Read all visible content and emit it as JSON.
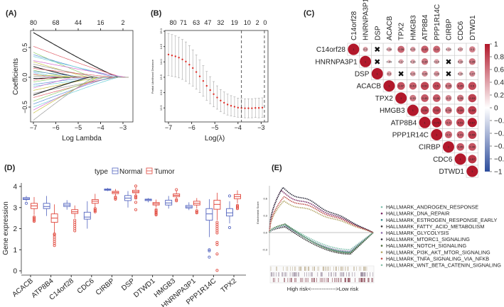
{
  "chart_data": [
    {
      "panel": "(A)",
      "type": "line",
      "xlabel": "Log Lambda",
      "ylabel": "Coefficients",
      "xlim": [
        -7.1,
        -2.6
      ],
      "ylim": [
        -0.8,
        0.8
      ],
      "xticks": [
        -7,
        -6,
        -5,
        -4,
        -3
      ],
      "yticks": [
        0.5,
        0.0,
        -0.5
      ],
      "top_ticks": [
        {
          "lambda": -7,
          "label": "80"
        },
        {
          "lambda": -6,
          "label": "68"
        },
        {
          "lambda": -5,
          "label": "44"
        },
        {
          "lambda": -4,
          "label": "16"
        },
        {
          "lambda": -3,
          "label": "2"
        }
      ],
      "palette": [
        "#222222",
        "#e0606a",
        "#8ccf6a",
        "#5b8fd6",
        "#6fd0d8",
        "#d66ad0",
        "#c8c040",
        "#9a9a9a"
      ],
      "paths": [
        {
          "start": 0.75,
          "zero_at": -3.2
        },
        {
          "start": 0.52,
          "zero_at": -3.0
        },
        {
          "start": 0.42,
          "zero_at": -4.3
        },
        {
          "start": 0.38,
          "zero_at": -3.3
        },
        {
          "start": 0.35,
          "zero_at": -3.0
        },
        {
          "start": 0.28,
          "zero_at": -2.8
        },
        {
          "start": 0.26,
          "zero_at": -4.5
        },
        {
          "start": 0.22,
          "zero_at": -4.1
        },
        {
          "start": 0.18,
          "zero_at": -5.0
        },
        {
          "start": 0.15,
          "zero_at": -3.3
        },
        {
          "start": 0.12,
          "zero_at": -5.4
        },
        {
          "start": 0.1,
          "zero_at": -4.6
        },
        {
          "start": 0.08,
          "zero_at": -5.8
        },
        {
          "start": 0.06,
          "zero_at": -6.2
        },
        {
          "start": 0.04,
          "zero_at": -4.2
        },
        {
          "start": 0.02,
          "zero_at": -5.0
        },
        {
          "start": -0.02,
          "zero_at": -4.8
        },
        {
          "start": -0.05,
          "zero_at": -6.0
        },
        {
          "start": -0.08,
          "zero_at": -5.6
        },
        {
          "start": -0.12,
          "zero_at": -4.4
        },
        {
          "start": -0.15,
          "zero_at": -3.6
        },
        {
          "start": -0.18,
          "zero_at": -5.2
        },
        {
          "start": -0.22,
          "zero_at": -4.0
        },
        {
          "start": -0.27,
          "zero_at": -3.2
        },
        {
          "start": -0.3,
          "zero_at": -4.5
        },
        {
          "start": -0.34,
          "zero_at": -3.4
        },
        {
          "start": -0.4,
          "zero_at": -3.8
        },
        {
          "start": -0.45,
          "zero_at": -3.5
        },
        {
          "start": -0.5,
          "zero_at": -3.2
        },
        {
          "start": -0.55,
          "zero_at": -3.9
        },
        {
          "start": -0.6,
          "zero_at": -4.1
        },
        {
          "start": -0.72,
          "zero_at": -4.3
        }
      ]
    },
    {
      "panel": "(B)",
      "type": "scatter",
      "xlabel": "Log(λ)",
      "ylabel": "Partial Likelihood Deviance",
      "xlim": [
        -7.15,
        -2.7
      ],
      "ylim": [
        12.2,
        15.05
      ],
      "xticks": [
        -7,
        -6,
        -5,
        -4,
        -3
      ],
      "yticks": [
        15.0,
        14.5,
        14.0,
        13.5,
        13.0,
        12.5
      ],
      "top_ticks": [
        {
          "lambda": -6.8,
          "label": "80"
        },
        {
          "lambda": -6.35,
          "label": "71"
        },
        {
          "lambda": -5.8,
          "label": "63"
        },
        {
          "lambda": -5.3,
          "label": "47"
        },
        {
          "lambda": -4.75,
          "label": "32"
        },
        {
          "lambda": -4.15,
          "label": "19"
        },
        {
          "lambda": -3.6,
          "label": "10"
        },
        {
          "lambda": -3.16,
          "label": "2"
        },
        {
          "lambda": -2.83,
          "label": "0"
        }
      ],
      "vlines": [
        -3.85,
        -2.86
      ],
      "points": [
        [
          -7.0,
          14.24,
          0.69
        ],
        [
          -6.85,
          14.21,
          0.68
        ],
        [
          -6.7,
          14.18,
          0.67
        ],
        [
          -6.55,
          14.14,
          0.66
        ],
        [
          -6.4,
          14.08,
          0.65
        ],
        [
          -6.25,
          14.01,
          0.64
        ],
        [
          -6.1,
          13.91,
          0.62
        ],
        [
          -5.95,
          13.8,
          0.59
        ],
        [
          -5.8,
          13.67,
          0.56
        ],
        [
          -5.65,
          13.53,
          0.53
        ],
        [
          -5.5,
          13.38,
          0.5
        ],
        [
          -5.35,
          13.22,
          0.47
        ],
        [
          -5.2,
          13.08,
          0.44
        ],
        [
          -5.05,
          12.95,
          0.41
        ],
        [
          -4.9,
          12.84,
          0.38
        ],
        [
          -4.75,
          12.74,
          0.36
        ],
        [
          -4.6,
          12.67,
          0.35
        ],
        [
          -4.45,
          12.61,
          0.34
        ],
        [
          -4.3,
          12.57,
          0.33
        ],
        [
          -4.15,
          12.54,
          0.32
        ],
        [
          -4.0,
          12.51,
          0.31
        ],
        [
          -3.85,
          12.5,
          0.31
        ],
        [
          -3.7,
          12.49,
          0.31
        ],
        [
          -3.55,
          12.49,
          0.31
        ],
        [
          -3.4,
          12.49,
          0.31
        ],
        [
          -3.25,
          12.5,
          0.31
        ],
        [
          -3.1,
          12.5,
          0.32
        ],
        [
          -2.95,
          12.51,
          0.32
        ]
      ],
      "point_color": "#e0302a",
      "errorbar_color": "#a8a8a8"
    },
    {
      "panel": "(C)",
      "type": "heatmap",
      "genes": [
        "C14orf28",
        "HNRNPA3P1",
        "DSP",
        "ACACB",
        "TPX2",
        "HMGB3",
        "ATP8B4",
        "PPP1R14C",
        "CIRBP",
        "CDC6",
        "DTWD1"
      ],
      "upper_triangle": [
        [
          1,
          0.2,
          null,
          0.16,
          0.39,
          0.21,
          0.43,
          0.4,
          0.15,
          0.17,
          0.3
        ],
        [
          1,
          null,
          0.09,
          0.17,
          0.16,
          0.34,
          0.19,
          null,
          0.19,
          0.35
        ],
        [
          1,
          0.2,
          null,
          0.21,
          0.26,
          0.23,
          null,
          0.15,
          0.27
        ],
        [
          1,
          0.47,
          0.43,
          0.51,
          0.5,
          0.35,
          0.45,
          0.5
        ],
        [
          1,
          0.33,
          0.45,
          0.45,
          0.3,
          0.35,
          0.53
        ],
        [
          1,
          0.54,
          0.52,
          0.36,
          0.49,
          0.55
        ],
        [
          1,
          0.73,
          0.4,
          0.51,
          0.67
        ],
        [
          1,
          0.4,
          0.41,
          0.55
        ],
        [
          1,
          0.45,
          0.46
        ],
        [
          1,
          0.57
        ],
        [
          1
        ]
      ],
      "colorbar_ticks": [
        "1",
        "0.8",
        "0.6",
        "0.4",
        "0.2",
        "0",
        "−0.2",
        "−0.4",
        "−0.6",
        "−0.8",
        "−1"
      ],
      "colorbar_values": [
        1,
        0.8,
        0.6,
        0.4,
        0.2,
        0,
        -0.2,
        -0.4,
        -0.6,
        -0.8,
        -1
      ],
      "color_positive": "#b2182b",
      "color_negative": "#2c4c9c",
      "color_zero": "#f7f7f7",
      "nonsignificant_mark": "✖"
    },
    {
      "panel": "(D)",
      "type": "box",
      "ylabel": "Gene expression",
      "ylim": [
        -0.15,
        4.3
      ],
      "yticks": [
        0,
        1,
        2,
        3,
        4
      ],
      "legend": {
        "title": "type",
        "entries": [
          {
            "name": "Normal",
            "color": "#5566c0"
          },
          {
            "name": "Tumor",
            "color": "#e0453a"
          }
        ]
      },
      "categories": [
        "ACACB",
        "ATP8B4",
        "C14orf28",
        "CDC6",
        "CIRBP",
        "DSP",
        "DTWD1",
        "HMGB3",
        "HNRNPA3P1",
        "PPP1R14C",
        "TPX2"
      ],
      "normal": [
        {
          "med": 3.42,
          "q1": 3.38,
          "q3": 3.47,
          "lo": 3.3,
          "hi": 3.55,
          "out": [
            3.2
          ]
        },
        {
          "med": 3.05,
          "q1": 2.95,
          "q3": 3.2,
          "lo": 2.6,
          "hi": 3.55,
          "out": []
        },
        {
          "med": 3.12,
          "q1": 3.05,
          "q3": 3.2,
          "lo": 2.9,
          "hi": 3.35,
          "out": []
        },
        {
          "med": 2.55,
          "q1": 2.45,
          "q3": 2.78,
          "lo": 2.0,
          "hi": 3.3,
          "out": []
        },
        {
          "med": 3.85,
          "q1": 3.82,
          "q3": 3.88,
          "lo": 3.78,
          "hi": 3.93,
          "out": []
        },
        {
          "med": 3.45,
          "q1": 3.33,
          "q3": 3.57,
          "lo": 3.0,
          "hi": 3.78,
          "out": []
        },
        {
          "med": 3.37,
          "q1": 3.33,
          "q3": 3.4,
          "lo": 3.25,
          "hi": 3.45,
          "out": []
        },
        {
          "med": 3.22,
          "q1": 3.12,
          "q3": 3.35,
          "lo": 2.95,
          "hi": 3.55,
          "out": []
        },
        {
          "med": 3.03,
          "q1": 2.98,
          "q3": 3.1,
          "lo": 2.88,
          "hi": 3.25,
          "out": []
        },
        {
          "med": 2.7,
          "q1": 2.4,
          "q3": 2.95,
          "lo": 1.6,
          "hi": 3.4,
          "out": [
            1.0,
            0.95,
            0.65
          ]
        },
        {
          "med": 2.75,
          "q1": 2.6,
          "q3": 2.95,
          "lo": 2.25,
          "hi": 3.3,
          "out": [
            2.05,
            3.55
          ]
        }
      ],
      "tumor": [
        {
          "med": 3.08,
          "q1": 2.95,
          "q3": 3.2,
          "lo": 2.65,
          "hi": 3.5,
          "out": [
            2.55,
            2.5,
            2.45,
            2.4,
            2.35
          ]
        },
        {
          "med": 2.5,
          "q1": 2.3,
          "q3": 2.7,
          "lo": 1.8,
          "hi": 3.15,
          "out": [
            1.75,
            1.7,
            1.6,
            1.5,
            1.4,
            1.3,
            1.2
          ]
        },
        {
          "med": 2.8,
          "q1": 2.72,
          "q3": 2.9,
          "lo": 2.5,
          "hi": 3.1,
          "out": [
            2.4,
            2.3,
            2.2,
            2.1,
            2.0,
            1.9
          ]
        },
        {
          "med": 3.3,
          "q1": 3.2,
          "q3": 3.38,
          "lo": 3.0,
          "hi": 3.65,
          "out": [
            2.95,
            2.9,
            2.85,
            2.8
          ]
        },
        {
          "med": 3.72,
          "q1": 3.66,
          "q3": 3.77,
          "lo": 3.55,
          "hi": 3.88,
          "out": [
            3.5,
            3.45,
            3.4
          ]
        },
        {
          "med": 3.75,
          "q1": 3.7,
          "q3": 3.82,
          "lo": 3.6,
          "hi": 3.95,
          "out": [
            4.02,
            3.55,
            3.5,
            3.45,
            3.25,
            2.9
          ]
        },
        {
          "med": 3.18,
          "q1": 3.12,
          "q3": 3.24,
          "lo": 3.0,
          "hi": 3.38,
          "out": [
            2.9,
            2.85,
            2.8,
            2.75,
            2.7,
            2.65
          ]
        },
        {
          "med": 3.58,
          "q1": 3.52,
          "q3": 3.65,
          "lo": 3.42,
          "hi": 3.8,
          "out": [
            3.85,
            3.38,
            3.32
          ]
        },
        {
          "med": 3.2,
          "q1": 3.12,
          "q3": 3.3,
          "lo": 2.95,
          "hi": 3.45,
          "out": [
            2.85,
            2.8,
            2.75
          ]
        },
        {
          "med": 3.15,
          "q1": 2.92,
          "q3": 3.35,
          "lo": 2.4,
          "hi": 3.7,
          "out": [
            2.3,
            2.2,
            2.1,
            2.0,
            1.9,
            1.8,
            1.35,
            1.25,
            0.8,
            0.02
          ]
        },
        {
          "med": 3.52,
          "q1": 3.42,
          "q3": 3.62,
          "lo": 3.2,
          "hi": 3.82,
          "out": [
            3.1,
            3.05,
            3.0,
            2.95
          ]
        }
      ]
    },
    {
      "panel": "(E)",
      "type": "line",
      "ylabel": "Enrichment Score",
      "ylim": [
        -0.45,
        0.82
      ],
      "yticks": [
        0.6,
        0.3,
        0.0,
        -0.3
      ],
      "xlabel": "High risk<-------------->Low risk",
      "series": [
        {
          "name": "HALLMARK_ANDROGEN_RESPONSE",
          "color": "#7fc0ae",
          "peak": 0.15,
          "trough": -0.3
        },
        {
          "name": "HALLMARK_DNA_REPAIR",
          "color": "#7a2c66",
          "peak": 0.72,
          "trough": 0
        },
        {
          "name": "HALLMARK_ESTROGEN_RESPONSE_EARLY",
          "color": "#3c8c8c",
          "peak": 0.14,
          "trough": -0.35
        },
        {
          "name": "HALLMARK_FATTY_ACID_METABOLISM",
          "color": "#333333",
          "peak": 0.1,
          "trough": -0.38
        },
        {
          "name": "HALLMARK_GLYCOLYSIS",
          "color": "#8a6aa8",
          "peak": 0.12,
          "trough": -0.33
        },
        {
          "name": "HALLMARK_MTORC1_SIGNALING",
          "color": "#2a2a3a",
          "peak": 0.78,
          "trough": 0
        },
        {
          "name": "HALLMARK_NOTCH_SIGNALING",
          "color": "#4d6b3a",
          "peak": 0.15,
          "trough": -0.36
        },
        {
          "name": "HALLMARK_PI3K_AKT_MTOR_SIGNALING",
          "color": "#b5a76a",
          "peak": 0.55,
          "trough": 0
        },
        {
          "name": "HALLMARK_TNFA_SIGNALING_VIA_NFKB",
          "color": "#c0504d",
          "peak": 0.63,
          "trough": 0
        },
        {
          "name": "HALLMARK_WNT_BETA_CATENIN_SIGNALING",
          "color": "#86c0a8",
          "peak": 0.13,
          "trough": -0.34
        }
      ]
    }
  ]
}
